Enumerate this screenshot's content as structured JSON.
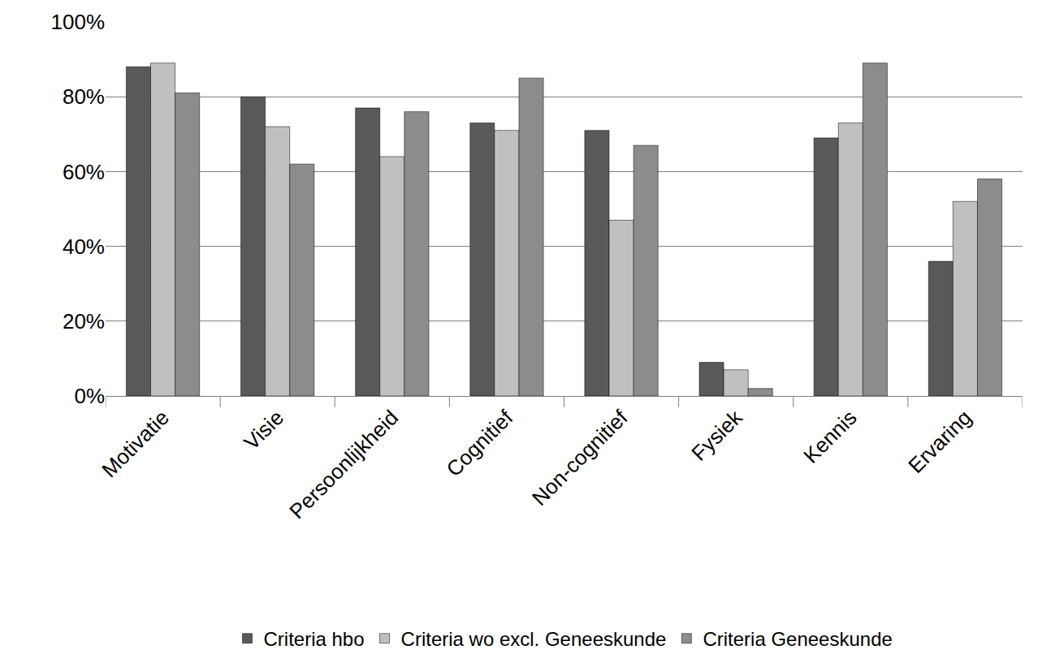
{
  "chart_data": {
    "type": "bar",
    "categories": [
      "Motivatie",
      "Visie",
      "Persoonlijkheid",
      "Cognitief",
      "Non-cognitief",
      "Fysiek",
      "Kennis",
      "Ervaring"
    ],
    "series": [
      {
        "name": "Criteria hbo",
        "color": "#595959",
        "values": [
          88,
          80,
          77,
          73,
          71,
          9,
          69,
          36
        ]
      },
      {
        "name": "Criteria wo excl. Geneeskunde",
        "color": "#c0c0c0",
        "values": [
          89,
          72,
          64,
          71,
          47,
          7,
          73,
          52
        ]
      },
      {
        "name": "Criteria Geneeskunde",
        "color": "#8c8c8c",
        "values": [
          81,
          62,
          76,
          85,
          67,
          2,
          89,
          58
        ]
      }
    ],
    "ylim": [
      0,
      100
    ],
    "yticks": [
      {
        "value": 0,
        "label": "0%"
      },
      {
        "value": 20,
        "label": "20%"
      },
      {
        "value": 40,
        "label": "40%"
      },
      {
        "value": 60,
        "label": "60%"
      },
      {
        "value": 80,
        "label": "80%"
      },
      {
        "value": 100,
        "label": "100%"
      }
    ],
    "grid": true,
    "legend": "bottom"
  }
}
